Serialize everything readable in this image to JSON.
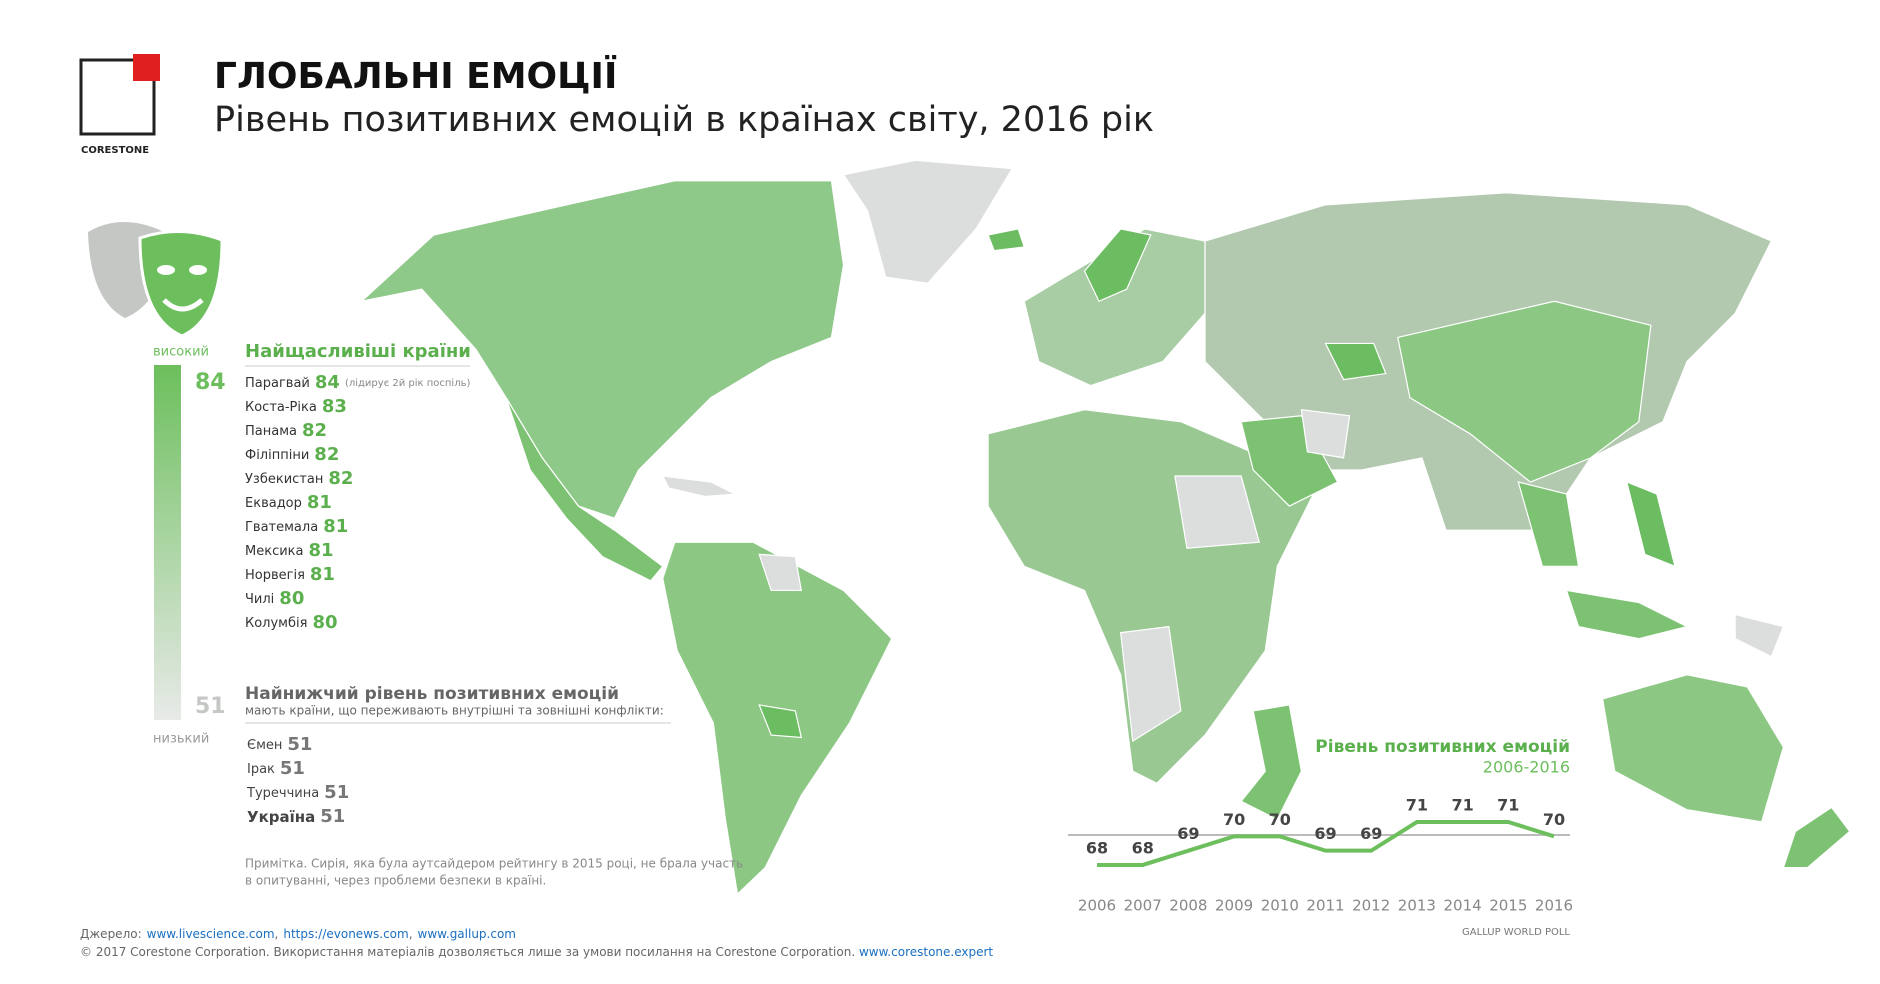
{
  "brand": "CORESTONE",
  "header": {
    "title": "ГЛОБАЛЬНІ ЕМОЦІЇ",
    "subtitle": "Рівень позитивних емоцій в країнах світу, 2016 рік"
  },
  "scale": {
    "high_label": "високий",
    "high_value": 84,
    "low_value": 51,
    "low_label": "низький"
  },
  "happiest": {
    "title": "Найщасливіші країни",
    "items": [
      {
        "name": "Парагвай",
        "value": 84,
        "note": "(лідирує 2й рік поспіль)"
      },
      {
        "name": "Коста-Ріка",
        "value": 83
      },
      {
        "name": "Панама",
        "value": 82
      },
      {
        "name": "Філіппіни",
        "value": 82
      },
      {
        "name": "Узбекистан",
        "value": 82
      },
      {
        "name": "Еквадор",
        "value": 81
      },
      {
        "name": "Гватемала",
        "value": 81
      },
      {
        "name": "Мексика",
        "value": 81
      },
      {
        "name": "Норвегія",
        "value": 81
      },
      {
        "name": "Чилі",
        "value": 80
      },
      {
        "name": "Колумбія",
        "value": 80
      }
    ]
  },
  "lowest": {
    "title": "Найнижчий рівень позитивних емоцій",
    "subtitle": "мають країни, що переживають внутрішні та зовнішні конфлікти:",
    "items": [
      {
        "name": "Ємен",
        "value": 51
      },
      {
        "name": "Ірак",
        "value": 51
      },
      {
        "name": "Туреччина",
        "value": 51
      },
      {
        "name": "Україна",
        "value": 51
      }
    ]
  },
  "note": [
    "Примітка. Сирія, яка була аутсайдером рейтингу в 2015 році, не брала участь",
    "в опитуванні, через проблеми безпеки в країні."
  ],
  "footer": {
    "source_label": "Джерело:",
    "sources": [
      "www.livescience.com",
      "https://evonews.com",
      "www.gallup.com"
    ],
    "separator": ",",
    "copyright": "© 2017 Corestone Corporation. Використання матеріалів дозволяється лише за умови посилання на Corestone Corporation.",
    "site": "www.corestone.expert"
  },
  "chart_data": {
    "type": "line",
    "title": "Рівень позитивних емоцій",
    "subtitle": "2006-2016",
    "source": "GALLUP WORLD POLL",
    "categories": [
      "2006",
      "2007",
      "2008",
      "2009",
      "2010",
      "2011",
      "2012",
      "2013",
      "2014",
      "2015",
      "2016"
    ],
    "values": [
      68,
      68,
      69,
      70,
      70,
      69,
      69,
      71,
      71,
      71,
      70
    ],
    "color": "#6cbf5c"
  }
}
